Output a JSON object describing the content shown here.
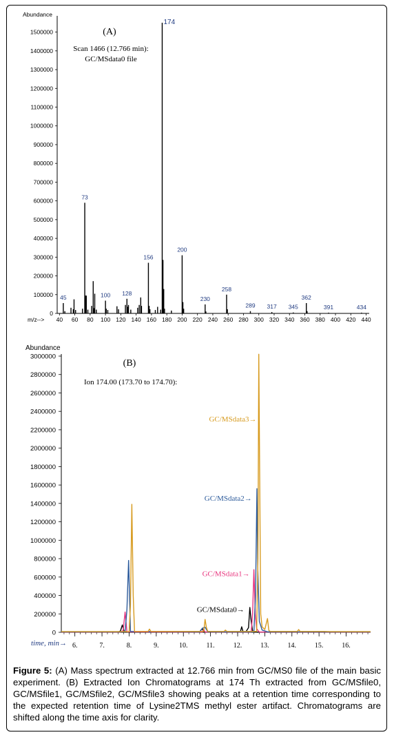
{
  "figure": {
    "caption_label": "Figure 5:",
    "caption_text": " (A) Mass spectrum extracted at 12.766 min from GC/MS0 file of the main basic experiment. (B) Extracted Ion Chromatograms at 174 Th extracted from GC/MSfile0, GC/MSfile1, GC/MSfile2, GC/MSfile3 showing peaks at a retention time corresponding to the expected retention time of Lysine2TMS methyl ester artifact. Chromatograms are shifted along the time axis for clarity."
  },
  "chart_data": [
    {
      "type": "bar",
      "panel_label": "(A)",
      "annotation_line1": "Scan 1466 (12.766 min):",
      "annotation_line2": "GC/MSdata0 file",
      "ylabel": "Abundance",
      "xlabel": "m/z-->",
      "xlim": [
        37,
        444
      ],
      "ylim": [
        0,
        1550000
      ],
      "xticks": [
        40,
        60,
        80,
        100,
        120,
        140,
        160,
        180,
        200,
        220,
        240,
        260,
        280,
        300,
        320,
        340,
        360,
        380,
        400,
        420,
        440
      ],
      "yticks": [
        0,
        100000,
        200000,
        300000,
        400000,
        500000,
        600000,
        700000,
        800000,
        900000,
        1000000,
        1100000,
        1200000,
        1300000,
        1400000,
        1500000
      ],
      "colors": {
        "bars": "#000000",
        "peak_labels": "#1f3a80"
      },
      "peaks": [
        {
          "mz": 45,
          "value": 55000,
          "label": "45"
        },
        {
          "mz": 47,
          "value": 12000
        },
        {
          "mz": 55,
          "value": 30000
        },
        {
          "mz": 58,
          "value": 22000
        },
        {
          "mz": 59,
          "value": 75000
        },
        {
          "mz": 61,
          "value": 18000
        },
        {
          "mz": 70,
          "value": 25000
        },
        {
          "mz": 73,
          "value": 590000,
          "label": "73"
        },
        {
          "mz": 74,
          "value": 95000
        },
        {
          "mz": 75,
          "value": 95000
        },
        {
          "mz": 77,
          "value": 20000
        },
        {
          "mz": 82,
          "value": 40000
        },
        {
          "mz": 84,
          "value": 172000
        },
        {
          "mz": 85,
          "value": 28000
        },
        {
          "mz": 86,
          "value": 105000
        },
        {
          "mz": 88,
          "value": 20000
        },
        {
          "mz": 100,
          "value": 68000,
          "label": "100"
        },
        {
          "mz": 101,
          "value": 25000
        },
        {
          "mz": 103,
          "value": 18000
        },
        {
          "mz": 115,
          "value": 38000
        },
        {
          "mz": 117,
          "value": 22000
        },
        {
          "mz": 126,
          "value": 45000
        },
        {
          "mz": 128,
          "value": 78000,
          "label": "128"
        },
        {
          "mz": 129,
          "value": 35000
        },
        {
          "mz": 130,
          "value": 45000
        },
        {
          "mz": 133,
          "value": 20000
        },
        {
          "mz": 142,
          "value": 30000
        },
        {
          "mz": 144,
          "value": 45000
        },
        {
          "mz": 146,
          "value": 85000
        },
        {
          "mz": 147,
          "value": 40000
        },
        {
          "mz": 156,
          "value": 270000,
          "label": "156"
        },
        {
          "mz": 157,
          "value": 40000
        },
        {
          "mz": 158,
          "value": 22000
        },
        {
          "mz": 165,
          "value": 18000
        },
        {
          "mz": 168,
          "value": 35000
        },
        {
          "mz": 172,
          "value": 20000
        },
        {
          "mz": 174,
          "value": 1550000,
          "label": "174"
        },
        {
          "mz": 175,
          "value": 285000
        },
        {
          "mz": 176,
          "value": 130000
        },
        {
          "mz": 177,
          "value": 25000
        },
        {
          "mz": 186,
          "value": 15000
        },
        {
          "mz": 200,
          "value": 310000,
          "label": "200"
        },
        {
          "mz": 201,
          "value": 60000
        },
        {
          "mz": 202,
          "value": 25000
        },
        {
          "mz": 230,
          "value": 48000,
          "label": "230"
        },
        {
          "mz": 231,
          "value": 10000
        },
        {
          "mz": 258,
          "value": 100000,
          "label": "258"
        },
        {
          "mz": 259,
          "value": 22000
        },
        {
          "mz": 289,
          "value": 12000,
          "label": "289"
        },
        {
          "mz": 317,
          "value": 7000,
          "label": "317"
        },
        {
          "mz": 345,
          "value": 5000,
          "label": "345"
        },
        {
          "mz": 362,
          "value": 55000,
          "label": "362"
        },
        {
          "mz": 363,
          "value": 12000
        },
        {
          "mz": 391,
          "value": 4000,
          "label": "391"
        },
        {
          "mz": 434,
          "value": 4000,
          "label": "434"
        }
      ]
    },
    {
      "type": "line",
      "panel_label": "(B)",
      "annotation": "Ion 174.00 (173.70 to 174.70):",
      "ylabel": "Abundance",
      "xlabel": "time, min→",
      "xlim": [
        5.5,
        16.9
      ],
      "ylim": [
        0,
        3000000
      ],
      "xticks": [
        6,
        7,
        8,
        9,
        10,
        11,
        12,
        13,
        14,
        15,
        16
      ],
      "xtick_labels": [
        "6.",
        "7.",
        "8.",
        "9.",
        "10.",
        "11.",
        "12.",
        "13.",
        "14.",
        "15.",
        "16."
      ],
      "yticks": [
        0,
        200000,
        400000,
        600000,
        800000,
        1000000,
        1200000,
        1400000,
        1600000,
        1800000,
        2000000,
        2200000,
        2400000,
        2600000,
        2800000,
        3000000
      ],
      "series": [
        {
          "name": "GC/MSdata0→",
          "color": "#000000",
          "label_x": 12.35,
          "label_y": 250000,
          "x": [
            5.5,
            7.6,
            7.68,
            7.75,
            7.82,
            10.6,
            10.65,
            10.7,
            10.75,
            12.1,
            12.15,
            12.2,
            12.3,
            12.4,
            12.45,
            12.5,
            12.55,
            12.6,
            12.7,
            13.0,
            13.2,
            16.9
          ],
          "y": [
            2000,
            3000,
            15000,
            80000,
            5000,
            3000,
            25000,
            40000,
            3000,
            3000,
            60000,
            5000,
            3000,
            50000,
            270000,
            120000,
            15000,
            5000,
            3000,
            2000,
            2000,
            2000
          ]
        },
        {
          "name": "GC/MSdata1→",
          "color": "#e8357e",
          "label_x": 12.55,
          "label_y": 640000,
          "x": [
            5.5,
            7.7,
            7.78,
            7.85,
            7.92,
            10.7,
            10.75,
            10.8,
            12.5,
            12.55,
            12.6,
            12.65,
            12.7,
            12.75,
            12.8,
            16.9
          ],
          "y": [
            3000,
            3000,
            20000,
            220000,
            5000,
            3000,
            30000,
            3000,
            3000,
            200000,
            680000,
            200000,
            40000,
            20000,
            3000,
            3000
          ]
        },
        {
          "name": "GC/MSdata2→",
          "color": "#2d5b9b",
          "label_x": 12.63,
          "label_y": 1460000,
          "x": [
            5.5,
            7.85,
            7.92,
            7.98,
            8.05,
            10.6,
            10.7,
            10.8,
            10.9,
            12.6,
            12.66,
            12.71,
            12.74,
            12.8,
            12.9,
            13.1,
            16.9
          ],
          "y": [
            5000,
            5000,
            250000,
            780000,
            10000,
            5000,
            45000,
            55000,
            5000,
            5000,
            400000,
            1560000,
            700000,
            120000,
            25000,
            5000,
            5000
          ]
        },
        {
          "name": "GC/MSdata3→",
          "color": "#d79b20",
          "label_x": 12.8,
          "label_y": 2320000,
          "x": [
            5.5,
            8.0,
            8.05,
            8.1,
            8.15,
            8.2,
            8.7,
            8.75,
            8.8,
            10.75,
            10.8,
            10.85,
            10.9,
            11.5,
            11.55,
            11.6,
            12.7,
            12.75,
            12.78,
            12.82,
            12.85,
            12.9,
            13.0,
            13.1,
            13.15,
            13.2,
            14.2,
            14.25,
            14.3,
            15.2,
            15.4,
            16.9
          ],
          "y": [
            8000,
            8000,
            300000,
            1390000,
            400000,
            10000,
            10000,
            35000,
            10000,
            10000,
            140000,
            50000,
            10000,
            10000,
            25000,
            10000,
            10000,
            800000,
            3020000,
            1400000,
            200000,
            60000,
            30000,
            150000,
            20000,
            10000,
            10000,
            30000,
            10000,
            10000,
            8000,
            8000
          ]
        }
      ]
    }
  ]
}
